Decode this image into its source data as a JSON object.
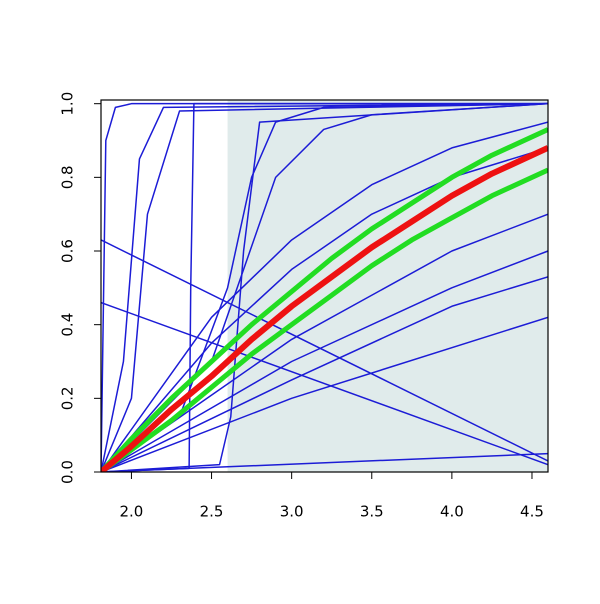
{
  "chart_data": {
    "type": "line",
    "xlim": [
      1.81,
      4.6
    ],
    "ylim": [
      0,
      1.01
    ],
    "xticks": [
      {
        "value": 2,
        "label": "2.0"
      },
      {
        "value": 2.5,
        "label": "2.5"
      },
      {
        "value": 3,
        "label": "3.0"
      },
      {
        "value": 3.5,
        "label": "3.5"
      },
      {
        "value": 4,
        "label": "4.0"
      },
      {
        "value": 4.5,
        "label": "4.5"
      }
    ],
    "yticks": [
      {
        "value": 0,
        "label": "0.0"
      },
      {
        "value": 0.2,
        "label": "0.2"
      },
      {
        "value": 0.4,
        "label": "0.4"
      },
      {
        "value": 0.6,
        "label": "0.6"
      },
      {
        "value": 0.8,
        "label": "0.8"
      },
      {
        "value": 1,
        "label": "1.0"
      }
    ],
    "shaded_region": {
      "x": [
        2.6,
        4.6
      ],
      "color": "#e0ebeb"
    },
    "series": [
      {
        "color": "#1c1cd6",
        "width": 1.5,
        "x": [
          1.81,
          1.84,
          1.9,
          2.0,
          4.6
        ],
        "values": [
          0,
          0.9,
          0.99,
          1,
          1
        ]
      },
      {
        "color": "#1c1cd6",
        "width": 1.5,
        "x": [
          1.81,
          1.95,
          2.05,
          2.2,
          4.6
        ],
        "values": [
          0,
          0.3,
          0.85,
          0.99,
          1
        ]
      },
      {
        "color": "#1c1cd6",
        "width": 1.5,
        "x": [
          1.81,
          2.0,
          2.1,
          2.3,
          4.6
        ],
        "values": [
          0,
          0.2,
          0.7,
          0.98,
          1
        ]
      },
      {
        "color": "#1c1cd6",
        "width": 1.5,
        "x": [
          1.81,
          2.36,
          2.37,
          2.39,
          4.6
        ],
        "values": [
          0,
          0.01,
          0.5,
          1,
          1
        ]
      },
      {
        "color": "#1c1cd6",
        "width": 1.5,
        "x": [
          1.81,
          2.55,
          2.62,
          2.7,
          2.8,
          4.6
        ],
        "values": [
          0,
          0.02,
          0.15,
          0.6,
          0.95,
          1
        ]
      },
      {
        "color": "#1c1cd6",
        "width": 1.5,
        "x": [
          1.81,
          2.3,
          2.6,
          2.75,
          2.9,
          3.2,
          4.6
        ],
        "values": [
          0,
          0.15,
          0.5,
          0.8,
          0.95,
          0.99,
          1
        ]
      },
      {
        "color": "#1c1cd6",
        "width": 1.5,
        "x": [
          1.81,
          2.5,
          2.9,
          3.2,
          3.5,
          4.6
        ],
        "values": [
          0,
          0.3,
          0.8,
          0.93,
          0.97,
          1
        ]
      },
      {
        "color": "#1c1cd6",
        "width": 1.5,
        "x": [
          1.81,
          4.6
        ],
        "values": [
          0.63,
          0.03
        ]
      },
      {
        "color": "#1c1cd6",
        "width": 1.5,
        "x": [
          1.81,
          4.6
        ],
        "values": [
          0.46,
          0.02
        ]
      },
      {
        "color": "#1c1cd6",
        "width": 1.5,
        "x": [
          1.81,
          2.5,
          3.0,
          3.5,
          4.0,
          4.6
        ],
        "values": [
          0,
          0.42,
          0.63,
          0.78,
          0.88,
          0.95
        ]
      },
      {
        "color": "#1c1cd6",
        "width": 1.5,
        "x": [
          1.81,
          2.5,
          3.0,
          3.5,
          4.0,
          4.6
        ],
        "values": [
          0,
          0.35,
          0.55,
          0.7,
          0.8,
          0.88
        ]
      },
      {
        "color": "#1c1cd6",
        "width": 1.5,
        "x": [
          1.81,
          3.0,
          4.0,
          4.6
        ],
        "values": [
          0,
          0.36,
          0.6,
          0.7
        ]
      },
      {
        "color": "#1c1cd6",
        "width": 1.5,
        "x": [
          1.81,
          3.0,
          4.0,
          4.6
        ],
        "values": [
          0,
          0.3,
          0.5,
          0.6
        ]
      },
      {
        "color": "#1c1cd6",
        "width": 1.5,
        "x": [
          1.81,
          3.0,
          4.0,
          4.6
        ],
        "values": [
          0,
          0.25,
          0.45,
          0.53
        ]
      },
      {
        "color": "#1c1cd6",
        "width": 1.5,
        "x": [
          1.81,
          3.0,
          4.6
        ],
        "values": [
          0,
          0.2,
          0.42
        ]
      },
      {
        "color": "#1c1cd6",
        "width": 1.5,
        "x": [
          1.81,
          4.6
        ],
        "values": [
          0,
          0.05
        ]
      },
      {
        "color": "#22dd22",
        "width": 5,
        "x": [
          1.81,
          2.0,
          2.25,
          2.5,
          2.75,
          3.0,
          3.25,
          3.5,
          3.75,
          4.0,
          4.25,
          4.6
        ],
        "values": [
          0,
          0.09,
          0.2,
          0.3,
          0.4,
          0.49,
          0.58,
          0.66,
          0.73,
          0.8,
          0.86,
          0.93
        ]
      },
      {
        "color": "#22dd22",
        "width": 5,
        "x": [
          1.81,
          2.0,
          2.25,
          2.5,
          2.75,
          3.0,
          3.25,
          3.5,
          3.75,
          4.0,
          4.25,
          4.6
        ],
        "values": [
          0,
          0.06,
          0.14,
          0.23,
          0.32,
          0.4,
          0.48,
          0.56,
          0.63,
          0.69,
          0.75,
          0.82
        ]
      },
      {
        "color": "#ee1111",
        "width": 6,
        "x": [
          1.81,
          2.0,
          2.25,
          2.5,
          2.75,
          3.0,
          3.25,
          3.5,
          3.75,
          4.0,
          4.25,
          4.6
        ],
        "values": [
          0,
          0.07,
          0.17,
          0.26,
          0.36,
          0.45,
          0.53,
          0.61,
          0.68,
          0.75,
          0.81,
          0.88
        ]
      }
    ]
  }
}
